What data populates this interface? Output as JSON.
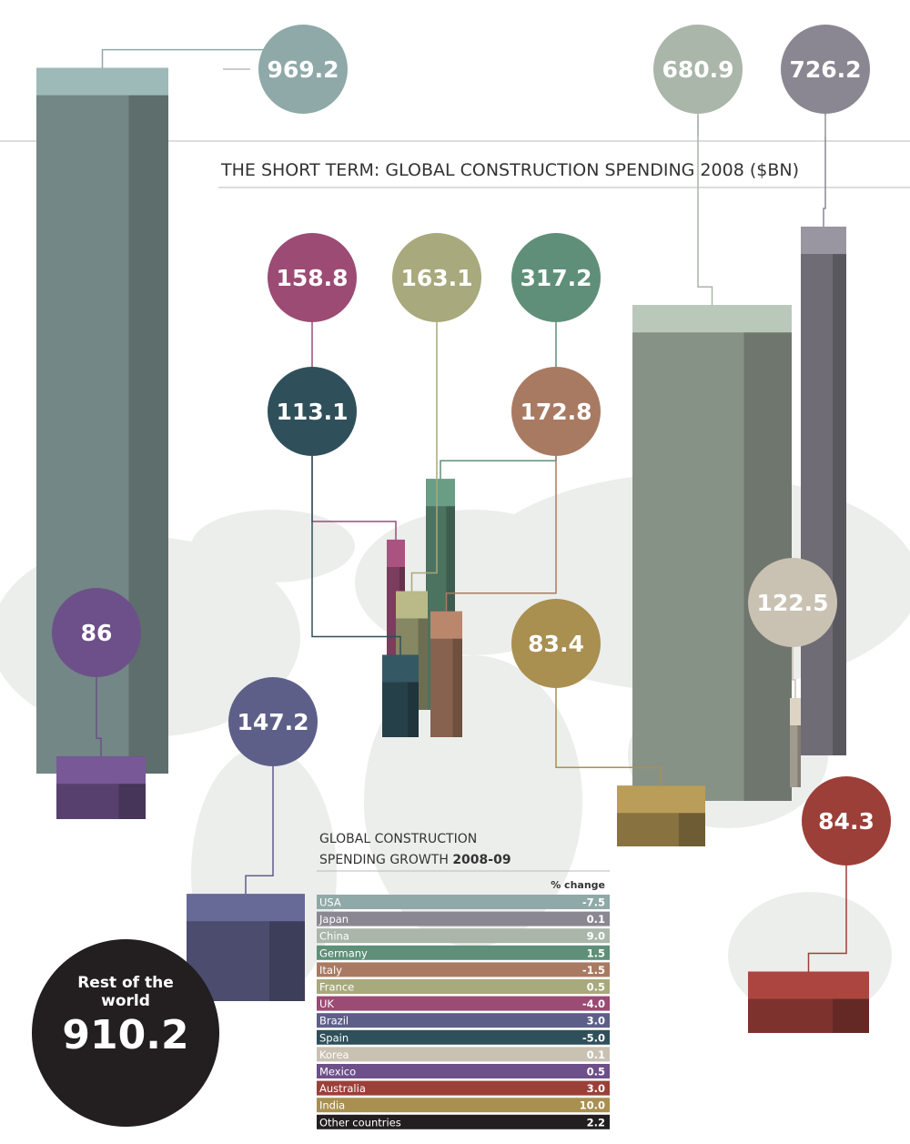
{
  "title": "THE SHORT TERM: GLOBAL CONSTRUCTION SPENDING 2008 ($BN)",
  "spending": [
    {
      "value": 969.2,
      "color": "#8fa9a8"
    },
    {
      "value": 680.9,
      "color": "#a9b6a9"
    },
    {
      "value": 726.2,
      "color": "#8b8792"
    },
    {
      "value": 158.8,
      "color": "#9b4b74"
    },
    {
      "value": 163.1,
      "color": "#a8a97c"
    },
    {
      "value": 317.2,
      "color": "#5f8f78"
    },
    {
      "value": 113.1,
      "color": "#2f505b"
    },
    {
      "value": 172.8,
      "color": "#a97a62"
    },
    {
      "value": 86,
      "color": "#6d5089"
    },
    {
      "value": 147.2,
      "color": "#5e5f89"
    },
    {
      "value": 83.4,
      "color": "#a98f50"
    },
    {
      "value": 122.5,
      "color": "#c9c1b2"
    },
    {
      "value": 84.3,
      "color": "#9c3f39"
    }
  ],
  "rest": {
    "label": "Rest of the world",
    "value": 910.2
  },
  "growth": {
    "title_line1": "GLOBAL CONSTRUCTION",
    "title_line2": "SPENDING GROWTH",
    "title_bold": "2008-09",
    "column_header": "% change",
    "rows": [
      {
        "country": "USA",
        "change": "-7.5",
        "color": "#8fa9a8"
      },
      {
        "country": "Japan",
        "change": "0.1",
        "color": "#8b8792"
      },
      {
        "country": "China",
        "change": "9.0",
        "color": "#a9b6a9"
      },
      {
        "country": "Germany",
        "change": "1.5",
        "color": "#5f8f78"
      },
      {
        "country": "Italy",
        "change": "-1.5",
        "color": "#a97a62"
      },
      {
        "country": "France",
        "change": "0.5",
        "color": "#a8a97c"
      },
      {
        "country": "UK",
        "change": "-4.0",
        "color": "#9b4b74"
      },
      {
        "country": "Brazil",
        "change": "3.0",
        "color": "#5e5f89"
      },
      {
        "country": "Spain",
        "change": "-5.0",
        "color": "#2f505b"
      },
      {
        "country": "Korea",
        "change": "0.1",
        "color": "#c9c1b2"
      },
      {
        "country": "Mexico",
        "change": "0.5",
        "color": "#6d5089"
      },
      {
        "country": "Australia",
        "change": "3.0",
        "color": "#9c3f39"
      },
      {
        "country": "India",
        "change": "10.0",
        "color": "#a98f50"
      },
      {
        "country": "Other countries",
        "change": "2.2",
        "color": "#231f20"
      }
    ]
  }
}
